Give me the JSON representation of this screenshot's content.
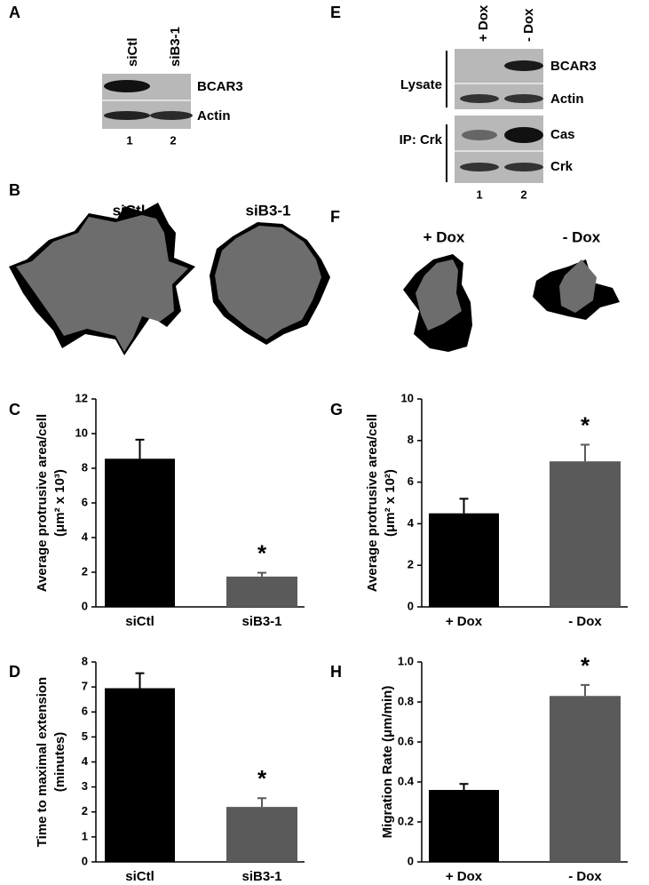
{
  "panel_labels": [
    "A",
    "B",
    "C",
    "D",
    "E",
    "F",
    "G",
    "H"
  ],
  "blot_a": {
    "columns": [
      "siCtl",
      "siB3-1"
    ],
    "rows": [
      "BCAR3",
      "Actin"
    ],
    "lanes": [
      "1",
      "2"
    ]
  },
  "cells_b": {
    "titles": [
      "siCtl",
      "siB3-1"
    ]
  },
  "blot_e": {
    "columns": [
      "+ Dox",
      "- Dox"
    ],
    "groups": [
      "Lysate",
      "IP: Crk"
    ],
    "rows": [
      "BCAR3",
      "Actin",
      "Cas",
      "Crk"
    ],
    "lanes": [
      "1",
      "2"
    ]
  },
  "cells_f": {
    "titles": [
      "+ Dox",
      "- Dox"
    ]
  },
  "chart_data": [
    {
      "type": "bar",
      "y_label": [
        "Average protrusive area/cell",
        "(μm² x 10³)"
      ],
      "categories": [
        "siCtl",
        "siB3-1"
      ],
      "values": [
        8.55,
        1.75
      ],
      "errors": [
        1.1,
        0.22
      ],
      "colors": [
        "#000000",
        "#5a5a5a"
      ],
      "ylim": [
        0,
        12
      ],
      "yticks": [
        0,
        2,
        4,
        6,
        8,
        10,
        12
      ],
      "annotation": "*"
    },
    {
      "type": "bar",
      "y_label": [
        "Time to maximal extension",
        "(minutes)"
      ],
      "categories": [
        "siCtl",
        "siB3-1"
      ],
      "values": [
        6.95,
        2.2
      ],
      "errors": [
        0.6,
        0.35
      ],
      "colors": [
        "#000000",
        "#5a5a5a"
      ],
      "ylim": [
        0,
        8
      ],
      "yticks": [
        0,
        1,
        2,
        3,
        4,
        5,
        6,
        7,
        8
      ],
      "annotation": "*"
    },
    {
      "type": "bar",
      "y_label": [
        "Average protrusive area/cell",
        "(μm² x 10²)"
      ],
      "categories": [
        "+ Dox",
        "- Dox"
      ],
      "values": [
        4.5,
        7.0
      ],
      "errors": [
        0.7,
        0.8
      ],
      "colors": [
        "#000000",
        "#5a5a5a"
      ],
      "ylim": [
        0,
        10
      ],
      "yticks": [
        0,
        2,
        4,
        6,
        8,
        10
      ],
      "annotation": "*"
    },
    {
      "type": "bar",
      "y_label": [
        "Migration Rate (μm/min)"
      ],
      "categories": [
        "+ Dox",
        "- Dox"
      ],
      "values": [
        0.36,
        0.83
      ],
      "errors": [
        0.03,
        0.055
      ],
      "colors": [
        "#000000",
        "#5a5a5a"
      ],
      "ylim": [
        0,
        1.0
      ],
      "yticks": [
        0,
        0.2,
        0.4,
        0.6,
        0.8,
        {
          "value": 1.0,
          "label": "1.0"
        }
      ],
      "annotation": "*"
    }
  ]
}
